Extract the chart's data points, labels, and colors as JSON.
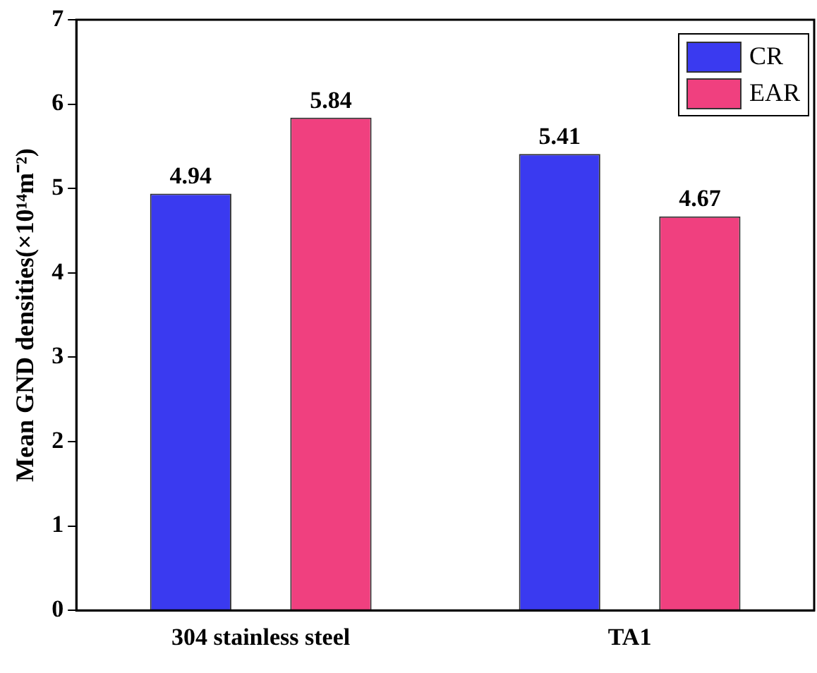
{
  "chart_data": {
    "type": "bar",
    "ylabel": "Mean GND densities(×10¹⁴m⁻²)",
    "categories": [
      "304 stainless steel",
      "TA1"
    ],
    "series": [
      {
        "name": "CR",
        "color": "#3a3af0",
        "values": [
          4.94,
          5.41
        ]
      },
      {
        "name": "EAR",
        "color": "#f0407f",
        "values": [
          5.84,
          4.67
        ]
      }
    ],
    "ylim": [
      0,
      7
    ],
    "yticks": [
      0,
      1,
      2,
      3,
      4,
      5,
      6,
      7
    ],
    "data_labels": true,
    "legend": "top right",
    "grid": false
  }
}
